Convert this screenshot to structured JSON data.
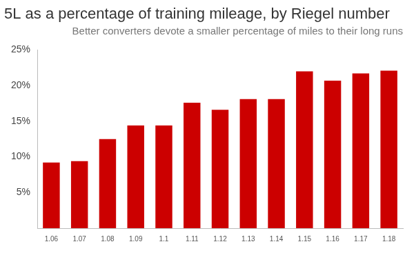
{
  "chart_data": {
    "type": "bar",
    "title": "5L as a percentage of training mileage, by Riegel number",
    "subtitle": "Better converters devote a smaller percentage of miles to their long runs",
    "categories": [
      "1.06",
      "1.07",
      "1.08",
      "1.09",
      "1.1",
      "1.11",
      "1.12",
      "1.13",
      "1.14",
      "1.15",
      "1.16",
      "1.17",
      "1.18"
    ],
    "values": [
      9.2,
      9.4,
      12.5,
      14.4,
      14.4,
      17.6,
      16.6,
      18.1,
      18.1,
      22.0,
      20.7,
      21.7,
      22.1
    ],
    "color": "#cc0000",
    "ylim": [
      0,
      25
    ],
    "yticks": [
      {
        "value": 5,
        "label": "5%"
      },
      {
        "value": 10,
        "label": "10%"
      },
      {
        "value": 15,
        "label": "15%"
      },
      {
        "value": 20,
        "label": "20%"
      },
      {
        "value": 25,
        "label": "25%"
      }
    ],
    "grid": false
  }
}
